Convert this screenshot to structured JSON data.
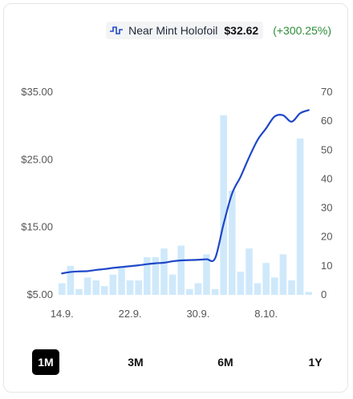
{
  "legend": {
    "icon": "price-line-icon",
    "variant": "Near Mint Holofoil",
    "price": "$32.62",
    "change": "(+300.25%)",
    "change_color": "#2e8b3a"
  },
  "ranges": [
    "1M",
    "3M",
    "6M",
    "1Y"
  ],
  "active_range": "1M",
  "chart_data": {
    "type": "line+bar",
    "x_labels": [
      "14.9.",
      "22.9.",
      "30.9.",
      "8.10."
    ],
    "left_axis": {
      "ticks": [
        "$35.00",
        "$25.00",
        "$15.00",
        "$5.00"
      ],
      "range": [
        5,
        35
      ]
    },
    "right_axis": {
      "ticks": [
        "70",
        "60",
        "50",
        "40",
        "30",
        "20",
        "10",
        "0"
      ],
      "range": [
        0,
        70
      ]
    },
    "line_color": "#1f47c8",
    "bar_color": "#cfe9fb",
    "volume": [
      4,
      10,
      2,
      6,
      5,
      3,
      7,
      10,
      5,
      5,
      13,
      13,
      16,
      7,
      17,
      2,
      4,
      14,
      2,
      62,
      36,
      8,
      16,
      4,
      11,
      6,
      14,
      5,
      54,
      1
    ],
    "price": [
      7.4,
      7.9,
      8.1,
      8.2,
      8.6,
      8.9,
      9.3,
      9.6,
      9.9,
      10.2,
      10.6,
      10.9,
      11.1,
      11.6,
      11.9,
      12.0,
      12.1,
      12.3,
      12.6,
      24.5,
      35,
      40.8,
      47.5,
      53.5,
      57.5,
      61.6,
      62.0,
      59.8,
      62.7,
      63.8
    ]
  }
}
